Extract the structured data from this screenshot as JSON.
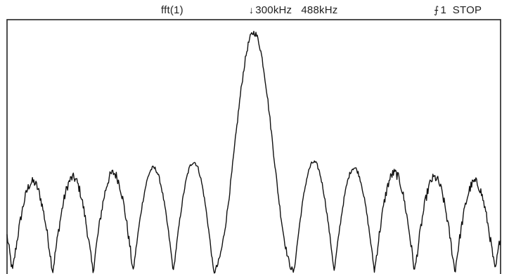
{
  "status": {
    "function": "fft(1)",
    "trigger_icon": "falling-edge-icon",
    "trigger_symbol": "↓",
    "trigger_freq": "300kHz",
    "span": "488kHz",
    "channel_icon": "trigger-slope-icon",
    "channel_symbol": "⨍",
    "channel": "1",
    "state": "STOP"
  },
  "colors": {
    "trace": "#111111",
    "frame": "#222222",
    "background": "#ffffff"
  },
  "chart_data": {
    "type": "line",
    "title": "",
    "xlabel": "",
    "ylabel": "",
    "xlim": [
      0,
      1
    ],
    "ylim": [
      0,
      1
    ],
    "grid": false,
    "envelope": {
      "type": "sinc",
      "center": 0.5,
      "lobe_width": 0.0815,
      "peak": 0.95,
      "peak_sidelobe": 0.46,
      "noise_floor": 0.03
    }
  }
}
